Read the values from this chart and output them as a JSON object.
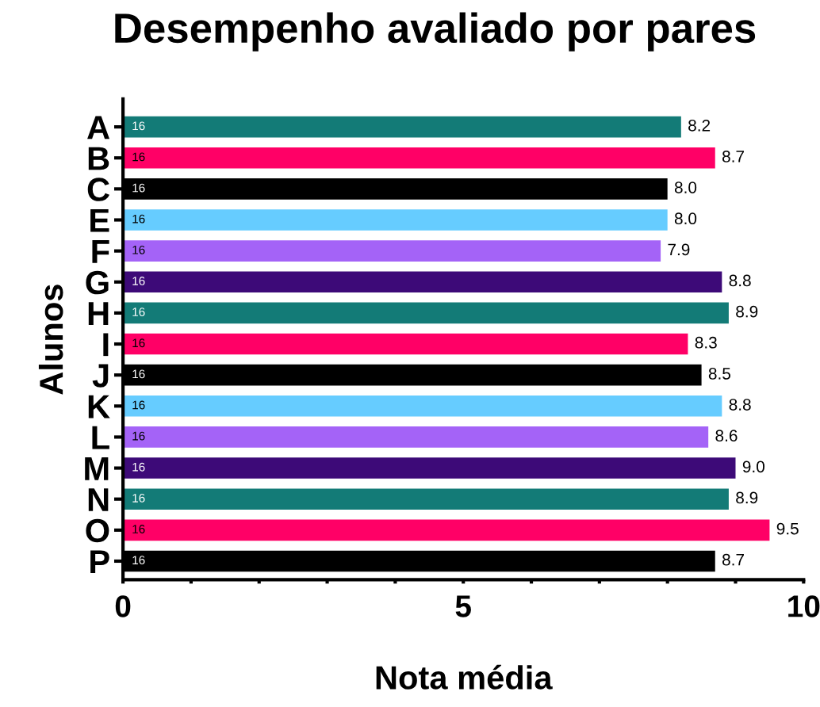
{
  "chart_data": {
    "type": "bar",
    "orientation": "horizontal",
    "title": "Desempenho avaliado por pares",
    "xlabel": "Nota média",
    "ylabel": "Alunos",
    "categories": [
      "A",
      "B",
      "C",
      "E",
      "F",
      "G",
      "H",
      "I",
      "J",
      "K",
      "L",
      "M",
      "N",
      "O",
      "P"
    ],
    "values": [
      8.2,
      8.7,
      8.0,
      8.0,
      7.9,
      8.8,
      8.9,
      8.3,
      8.5,
      8.8,
      8.6,
      9.0,
      8.9,
      9.5,
      8.7
    ],
    "colors": [
      "#137b77",
      "#ff0066",
      "#000000",
      "#66ccff",
      "#a463f7",
      "#3d0a78",
      "#137b77",
      "#ff0066",
      "#000000",
      "#66ccff",
      "#a463f7",
      "#3d0a78",
      "#137b77",
      "#ff0066",
      "#000000"
    ],
    "value_labels": [
      "8.2",
      "8.7",
      "8.0",
      "8.0",
      "7.9",
      "8.8",
      "8.9",
      "8.3",
      "8.5",
      "8.8",
      "8.6",
      "9.0",
      "8.9",
      "9.5",
      "8.7"
    ],
    "xlim": [
      0,
      10
    ],
    "xticks": [
      0,
      {
        "value": 1,
        "label": null
      },
      {
        "value": 2,
        "label": null
      },
      {
        "value": 3,
        "label": null
      },
      {
        "value": 4,
        "label": null
      },
      5,
      {
        "value": 6,
        "label": null
      },
      {
        "value": 7,
        "label": null
      },
      {
        "value": 8,
        "label": null
      },
      {
        "value": 9,
        "label": null
      },
      10
    ],
    "grid": false,
    "annotations": [
      {
        "text": "16",
        "y": "A"
      },
      {
        "text": "16",
        "y": "B"
      },
      {
        "text": "16",
        "y": "C"
      },
      {
        "text": "16",
        "y": "E"
      },
      {
        "text": "16",
        "y": "F"
      },
      {
        "text": "16",
        "y": "G"
      },
      {
        "text": "16",
        "y": "H"
      },
      {
        "text": "16",
        "y": "I"
      },
      {
        "text": "16",
        "y": "J"
      },
      {
        "text": "16",
        "y": "K"
      },
      {
        "text": "16",
        "y": "L"
      },
      {
        "text": "16",
        "y": "M"
      },
      {
        "text": "16",
        "y": "N"
      },
      {
        "text": "16",
        "y": "O"
      },
      {
        "text": "16",
        "y": "P"
      }
    ]
  }
}
